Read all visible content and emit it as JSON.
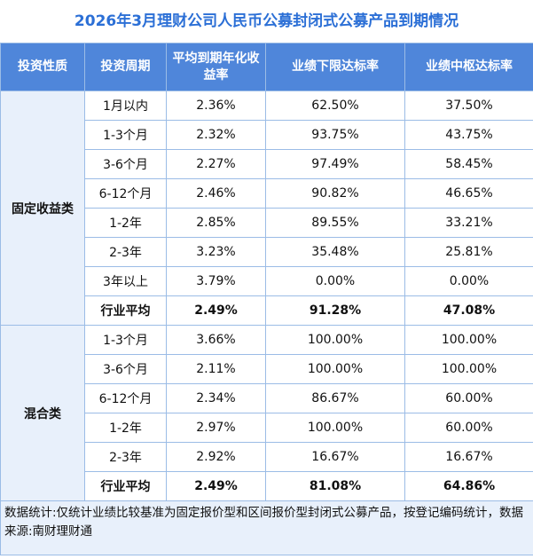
{
  "title": "2026年3月理财公司人民币公募封闭式公募产品到期情况",
  "headers": [
    "投资性质",
    "投资周期",
    "平均到期年化收益率",
    "业绩下限达标率",
    "业绩中枢达标率"
  ],
  "groups": [
    {
      "name": "固定收益类",
      "rows": [
        [
          "1月以内",
          "2.36%",
          "62.50%",
          "37.50%"
        ],
        [
          "1-3个月",
          "2.32%",
          "93.75%",
          "43.75%"
        ],
        [
          "3-6个月",
          "2.27%",
          "97.49%",
          "58.45%"
        ],
        [
          "6-12个月",
          "2.46%",
          "90.82%",
          "46.65%"
        ],
        [
          "1-2年",
          "2.85%",
          "89.55%",
          "33.21%"
        ],
        [
          "2-3年",
          "3.23%",
          "35.48%",
          "25.81%"
        ],
        [
          "3年以上",
          "3.79%",
          "0.00%",
          "0.00%"
        ]
      ],
      "average": [
        "行业平均",
        "2.49%",
        "91.28%",
        "47.08%"
      ]
    },
    {
      "name": "混合类",
      "rows": [
        [
          "1-3个月",
          "3.66%",
          "100.00%",
          "100.00%"
        ],
        [
          "3-6个月",
          "2.11%",
          "100.00%",
          "100.00%"
        ],
        [
          "6-12个月",
          "2.34%",
          "86.67%",
          "60.00%"
        ],
        [
          "1-2年",
          "2.97%",
          "100.00%",
          "60.00%"
        ],
        [
          "2-3年",
          "2.92%",
          "16.67%",
          "16.67%"
        ]
      ],
      "average": [
        "行业平均",
        "2.49%",
        "81.08%",
        "64.86%"
      ]
    }
  ],
  "note": "数据统计:仅统计业绩比较基准为固定报价型和区间报价型封闭式公募产品，按登记编码统计，数据来源:南财理财通"
}
